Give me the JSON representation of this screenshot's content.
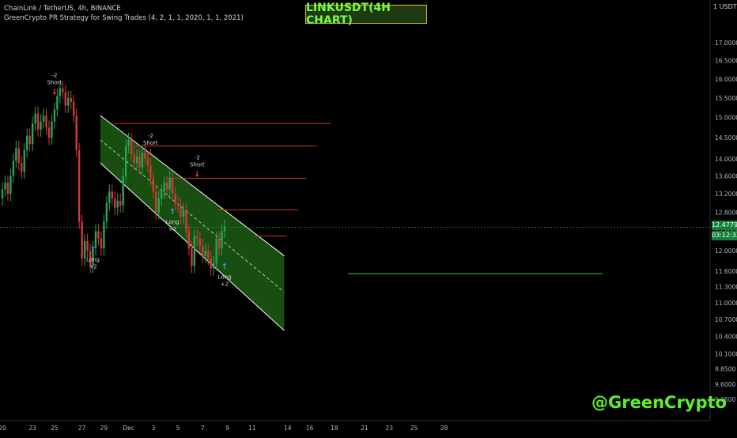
{
  "header": {
    "symbol_line": "ChainLink / TetherUS, 4h, BINANCE",
    "strategy_line": "GreenCrypto PR Strategy for Swing Trades (4, 2, 1, 1, 2020, 1, 1, 2021)"
  },
  "title_box": "LINKUSDT(4H CHART)",
  "watermark": "@GreenCrypto",
  "price_axis": {
    "unit": "USDT",
    "current_price": "12.4779",
    "countdown": "03:12:33"
  },
  "colors": {
    "background": "#000000",
    "up_candle": "#26a65b",
    "down_candle": "#d43a3a",
    "channel_fill": "#1c5c12",
    "channel_line": "#ffffff",
    "resistance_line": "#c43030",
    "support_line": "#3fc93f",
    "long_arrow": "#3aa3ff",
    "short_arrow": "#ff3355",
    "title_text": "#7cfc3a",
    "watermark": "#5bf02a"
  },
  "chart_data": {
    "type": "candlestick",
    "title": "LINKUSDT(4H CHART)",
    "y_scale": "log",
    "ylim": [
      9.2,
      17.55
    ],
    "y_ticks": [
      "17.0000",
      "16.5000",
      "16.0000",
      "15.5000",
      "15.0000",
      "14.5000",
      "14.0000",
      "13.6000",
      "13.2000",
      "12.8000",
      "12.4000",
      "12.0000",
      "11.6000",
      "11.3000",
      "11.0000",
      "10.7000",
      "10.4000",
      "10.1000",
      "9.8500",
      "9.6000",
      "9.3600"
    ],
    "y_tick_values": [
      17.0,
      16.5,
      16.0,
      15.5,
      15.0,
      14.5,
      14.0,
      13.6,
      13.2,
      12.8,
      12.4,
      12.0,
      11.6,
      11.3,
      11.0,
      10.7,
      10.4,
      10.1,
      9.85,
      9.6,
      9.36
    ],
    "x_ticks": [
      "20",
      "23",
      "25",
      "27",
      "29",
      "Dec",
      "3",
      "5",
      "7",
      "9",
      "11",
      "14",
      "16",
      "18",
      "21",
      "23",
      "25",
      "28"
    ],
    "x_tick_index": [
      0,
      11,
      19,
      29,
      37,
      46,
      55,
      64,
      73,
      82,
      91,
      104,
      112,
      121,
      132,
      141,
      150,
      161
    ],
    "candles_close": [
      13.3,
      13.45,
      13.2,
      13.6,
      13.95,
      14.25,
      13.9,
      13.7,
      14.2,
      14.55,
      14.35,
      14.85,
      15.1,
      14.7,
      14.9,
      15.05,
      14.75,
      14.5,
      14.9,
      15.2,
      15.55,
      15.75,
      15.65,
      15.3,
      15.5,
      15.4,
      15.05,
      14.2,
      12.6,
      11.85,
      12.2,
      12.0,
      11.7,
      12.05,
      12.4,
      12.25,
      12.05,
      12.6,
      13.0,
      13.25,
      13.1,
      12.9,
      13.05,
      12.95,
      13.6,
      14.3,
      14.45,
      14.1,
      13.9,
      14.05,
      13.8,
      14.15,
      14.0,
      13.85,
      13.55,
      13.25,
      12.8,
      13.1,
      13.25,
      13.45,
      13.3,
      13.55,
      13.2,
      13.0,
      12.95,
      12.7,
      12.85,
      12.4,
      12.05,
      11.7,
      12.3,
      12.25,
      12.1,
      11.9,
      12.0,
      11.85,
      11.65,
      11.75,
      12.25,
      12.05,
      12.4,
      12.5
    ],
    "channel": {
      "upper_start": 15.05,
      "upper_end": 11.9,
      "lower_start": 13.9,
      "lower_end": 10.5,
      "mid_start": 14.45,
      "mid_end": 11.2
    },
    "resistance_levels": [
      14.85,
      14.3,
      13.55,
      12.85,
      12.3
    ],
    "support_levels": [
      11.55
    ],
    "signals": [
      {
        "type": "short",
        "text": [
          "-2",
          "Short"
        ],
        "candle": 19,
        "price": 15.55
      },
      {
        "type": "long",
        "text": [
          "Long",
          "+2"
        ],
        "candle": 33,
        "price": 12.2
      },
      {
        "type": "short",
        "text": [
          "-2",
          "Short"
        ],
        "candle": 54,
        "price": 14.05
      },
      {
        "type": "long",
        "text": [
          "Long",
          "+2"
        ],
        "candle": 62,
        "price": 13.0
      },
      {
        "type": "short",
        "text": [
          "-2",
          "Short"
        ],
        "candle": 71,
        "price": 13.55
      },
      {
        "type": "long",
        "text": [
          "Long",
          "+2"
        ],
        "candle": 81,
        "price": 11.85
      }
    ],
    "current_price": 12.4779
  }
}
